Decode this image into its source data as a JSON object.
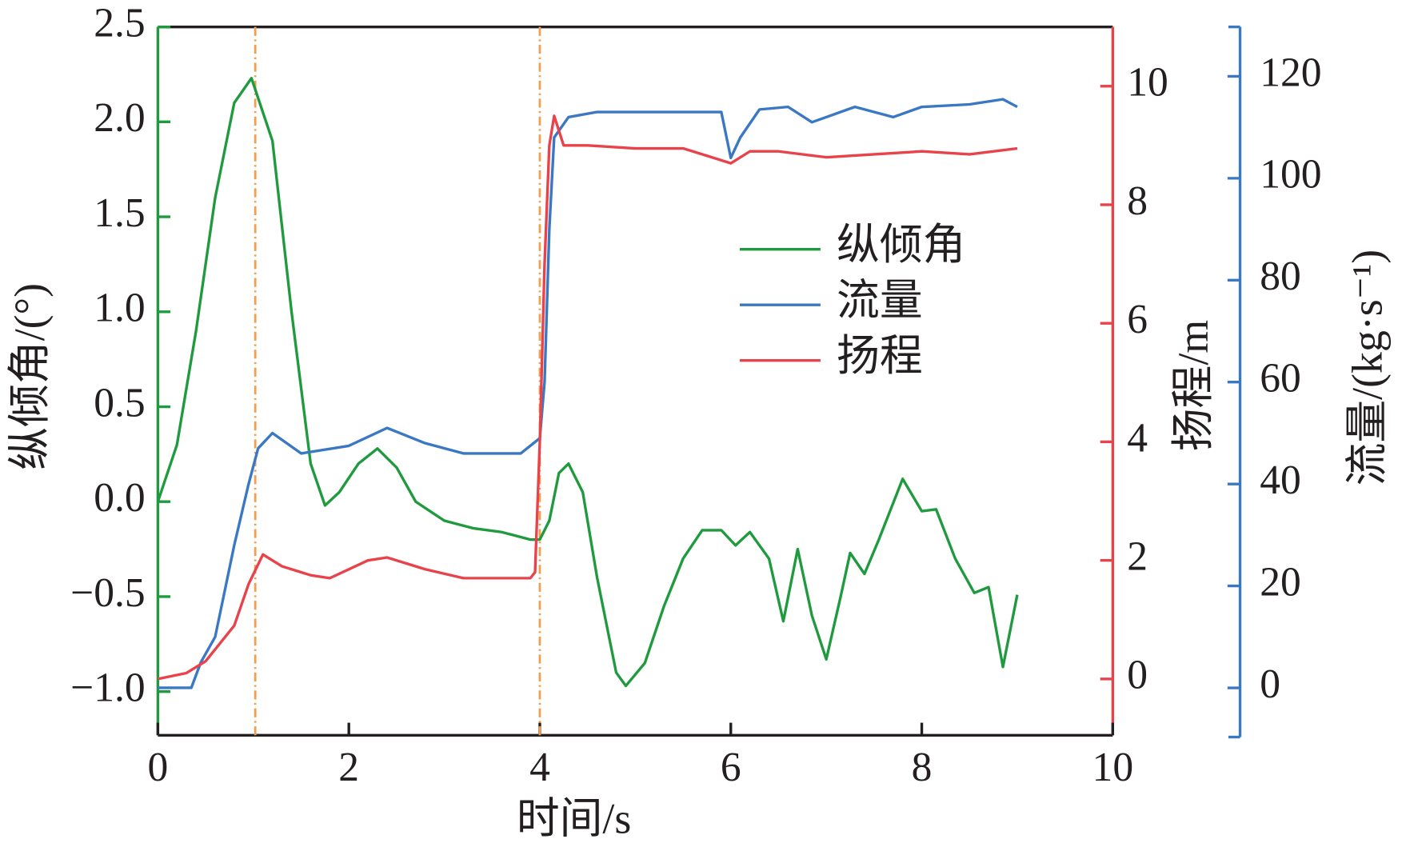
{
  "chart_data": {
    "type": "line",
    "xlabel": "时间/s",
    "ylabel": "纵倾角/(°)",
    "y2label": "扬程/m",
    "y3label": "流量/(kg·s⁻¹)",
    "xlim": [
      0,
      10
    ],
    "xticks": [
      0,
      2,
      4,
      6,
      8,
      10
    ],
    "ylim": [
      -1.23,
      2.5
    ],
    "yticks": [
      {
        "value": -1.0,
        "label": "−1.0"
      },
      {
        "value": -0.5,
        "label": "−0.5"
      },
      {
        "value": 0,
        "label": "0.0"
      },
      0.5,
      {
        "value": 1,
        "label": "1.0"
      },
      1.5,
      {
        "value": 2,
        "label": "2.0"
      },
      2.5
    ],
    "y2lim": [
      -0.95,
      11.0
    ],
    "y2ticks": [
      0,
      2,
      4,
      6,
      8,
      10
    ],
    "y3lim": [
      -9.3,
      129.7
    ],
    "y3ticks": [
      0,
      20,
      40,
      60,
      80,
      100,
      120
    ],
    "vlines": [
      1.02,
      4.0
    ],
    "vline_color": "#f0a050",
    "legend": "center right",
    "series": [
      {
        "name": "纵倾角",
        "color": "#1f9a3e",
        "axis": "y",
        "x": [
          0,
          0.2,
          0.4,
          0.6,
          0.8,
          0.98,
          1.2,
          1.4,
          1.6,
          1.75,
          1.9,
          2.1,
          2.3,
          2.5,
          2.7,
          3.0,
          3.3,
          3.6,
          3.9,
          4.0,
          4.1,
          4.2,
          4.3,
          4.45,
          4.6,
          4.8,
          4.9,
          5.1,
          5.3,
          5.5,
          5.7,
          5.9,
          6.05,
          6.2,
          6.4,
          6.55,
          6.7,
          6.85,
          7.0,
          7.15,
          7.25,
          7.4,
          7.55,
          7.8,
          8.0,
          8.15,
          8.35,
          8.55,
          8.7,
          8.85,
          9.0
        ],
        "values": [
          0.0,
          0.3,
          0.9,
          1.6,
          2.1,
          2.23,
          1.9,
          1.0,
          0.2,
          -0.02,
          0.05,
          0.2,
          0.28,
          0.18,
          0.0,
          -0.1,
          -0.14,
          -0.16,
          -0.2,
          -0.2,
          -0.1,
          0.15,
          0.2,
          0.05,
          -0.4,
          -0.9,
          -0.97,
          -0.85,
          -0.55,
          -0.3,
          -0.15,
          -0.15,
          -0.23,
          -0.16,
          -0.3,
          -0.63,
          -0.25,
          -0.6,
          -0.83,
          -0.5,
          -0.27,
          -0.38,
          -0.2,
          0.12,
          -0.05,
          -0.04,
          -0.3,
          -0.48,
          -0.45,
          -0.87,
          -0.49
        ]
      },
      {
        "name": "流量",
        "color": "#3a78c3",
        "axis": "y3",
        "x": [
          0,
          0.35,
          0.45,
          0.6,
          0.8,
          0.95,
          1.05,
          1.2,
          1.5,
          2.0,
          2.4,
          2.8,
          3.2,
          3.8,
          4.0,
          4.05,
          4.1,
          4.15,
          4.3,
          4.6,
          5.0,
          5.5,
          5.9,
          6.0,
          6.1,
          6.3,
          6.6,
          6.85,
          7.0,
          7.3,
          7.7,
          8.0,
          8.5,
          8.85,
          9.0
        ],
        "values": [
          0,
          0,
          5,
          10,
          28,
          40,
          47,
          50,
          46,
          47.5,
          51,
          48,
          46,
          46,
          49,
          60,
          90,
          108,
          112,
          113,
          113,
          113,
          113,
          104,
          108,
          113.5,
          114,
          111,
          112,
          114,
          112,
          114,
          114.5,
          115.5,
          114
        ]
      },
      {
        "name": "扬程",
        "color": "#e8434a",
        "axis": "y2",
        "x": [
          0,
          0.3,
          0.5,
          0.8,
          0.95,
          1.1,
          1.3,
          1.6,
          1.8,
          2.2,
          2.4,
          2.8,
          3.2,
          3.9,
          3.95,
          4.0,
          4.05,
          4.1,
          4.15,
          4.25,
          4.5,
          5.0,
          5.5,
          5.8,
          6.0,
          6.2,
          6.5,
          7.0,
          7.5,
          8.0,
          8.5,
          9.0
        ],
        "values": [
          0,
          0.1,
          0.3,
          0.9,
          1.6,
          2.1,
          1.9,
          1.75,
          1.7,
          2.0,
          2.05,
          1.85,
          1.7,
          1.7,
          1.8,
          4,
          7,
          9,
          9.5,
          9.0,
          9.0,
          8.95,
          8.95,
          8.8,
          8.7,
          8.9,
          8.9,
          8.8,
          8.85,
          8.9,
          8.85,
          8.95
        ]
      }
    ]
  }
}
